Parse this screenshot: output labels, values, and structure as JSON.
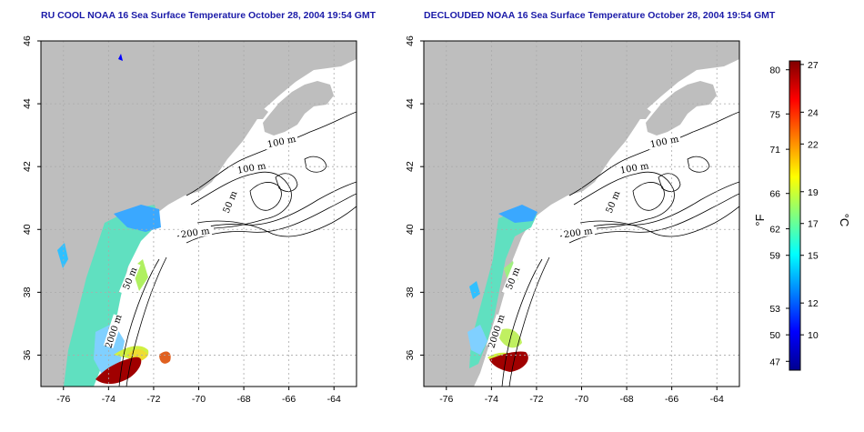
{
  "panels": [
    {
      "id": "raw",
      "title": "RU COOL NOAA 16 Sea Surface Temperature October 28, 2004 19:54 GMT"
    },
    {
      "id": "declouded",
      "title": "DECLOUDED NOAA 16 Sea Surface Temperature October 28, 2004 19:54 GMT"
    }
  ],
  "axes": {
    "lon_ticks": [
      "-76",
      "-74",
      "-72",
      "-70",
      "-68",
      "-66",
      "-64"
    ],
    "lat_ticks": [
      "46",
      "44",
      "42",
      "40",
      "38",
      "36"
    ],
    "lon_range": [
      -77,
      -63
    ],
    "lat_range": [
      35,
      46
    ]
  },
  "contours": {
    "labels": [
      "100 m",
      "100 m",
      "50 m",
      "200 m",
      "50 m",
      "2000 m"
    ]
  },
  "colorbar": {
    "fahrenheit_ticks": [
      "80",
      "75",
      "71",
      "66",
      "62",
      "59",
      "53",
      "50",
      "47"
    ],
    "celsius_ticks": [
      "27",
      "24",
      "22",
      "19",
      "17",
      "15",
      "12",
      "10"
    ],
    "fahrenheit_unit": "°F",
    "celsius_unit": "°C",
    "colors": [
      "#00008f",
      "#0000ff",
      "#0080ff",
      "#00ffff",
      "#80ff80",
      "#ffff00",
      "#ff8000",
      "#ff0000",
      "#800000"
    ]
  },
  "colors": {
    "land": "#bebebe",
    "ocean": "#ffffff",
    "grid": "#aaaaaa",
    "title": "#1a1aa8"
  }
}
